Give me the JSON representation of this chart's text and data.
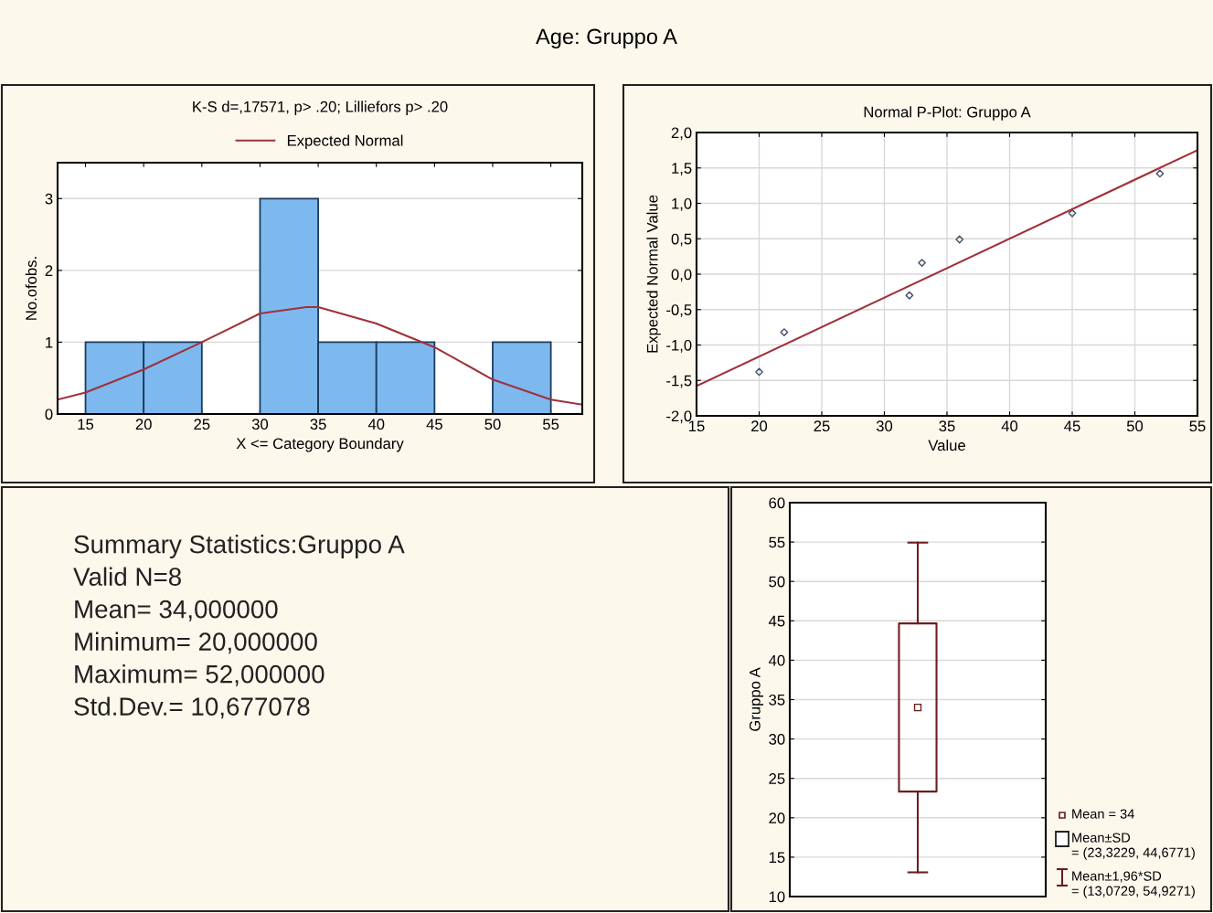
{
  "chart_data": [
    {
      "type": "other",
      "title": "Age: Gruppo A"
    },
    {
      "type": "histogram",
      "title": "K-S d=,17571, p> .20; Lilliefors p> .20",
      "xlabel": "X <= Category Boundary",
      "ylabel": "No.ofobs.",
      "bins": [
        15,
        20,
        25,
        30,
        35,
        40,
        45,
        50,
        55
      ],
      "values": [
        1,
        1,
        0,
        3,
        1,
        1,
        0,
        1
      ],
      "color": "#7db9ef",
      "xlim": [
        12.6,
        57.7
      ],
      "xticks": [
        15,
        20,
        25,
        30,
        35,
        40,
        45,
        50,
        55
      ],
      "ylim": [
        0,
        3.5
      ],
      "yticks": [
        0,
        1,
        2,
        3
      ],
      "grid": "y",
      "legend": "top",
      "series": [
        {
          "type": "line",
          "name": "Expected Normal",
          "color": "#a0303a",
          "x": [
            12.6,
            15,
            20,
            25,
            30,
            34,
            35,
            40,
            45,
            50,
            55,
            57.7
          ],
          "values": [
            0.2,
            0.3,
            0.62,
            1.0,
            1.4,
            1.49,
            1.49,
            1.26,
            0.93,
            0.48,
            0.2,
            0.13
          ]
        }
      ]
    },
    {
      "type": "scatter",
      "title": "Normal P-Plot: Gruppo A",
      "xlabel": "Value",
      "ylabel": "Expected Normal Value",
      "grid": true,
      "xlim": [
        15,
        55
      ],
      "xticks": [
        15,
        20,
        25,
        30,
        35,
        40,
        45,
        50,
        55
      ],
      "ylim": [
        -2,
        2
      ],
      "yticks": [
        {
          "value": -2,
          "label": "-2,0"
        },
        {
          "value": -1.5,
          "label": "-1,5"
        },
        {
          "value": -1,
          "label": "-1,0"
        },
        {
          "value": -0.5,
          "label": "-0,5"
        },
        {
          "value": 0,
          "label": "0,0"
        },
        {
          "value": 0.5,
          "label": "0,5"
        },
        {
          "value": 1,
          "label": "1,0"
        },
        {
          "value": 1.5,
          "label": "1,5"
        },
        {
          "value": 2,
          "label": "2,0"
        }
      ],
      "series": [
        {
          "color": "#3c4c64",
          "marker": "diamond",
          "x": [
            20,
            22,
            32,
            33,
            36,
            45,
            52
          ],
          "values": [
            -1.38,
            -0.82,
            -0.3,
            0.16,
            0.49,
            0.86,
            1.42
          ]
        },
        {
          "type": "line",
          "color": "#a0303a",
          "x": [
            15,
            55
          ],
          "values": [
            -1.58,
            1.75
          ]
        }
      ]
    },
    {
      "type": "other",
      "title": "Summary Statistics:Gruppo A",
      "annotations": [
        "Valid N=8",
        "Mean= 34,000000",
        "Minimum= 20,000000",
        "Maximum= 52,000000",
        "Std.Dev.= 10,677078"
      ]
    },
    {
      "type": "box",
      "ylabel": "Gruppo A",
      "categories": [
        null
      ],
      "color": "#6b1f1f",
      "boxes": [
        {
          "low": 13.0729,
          "q1": 23.3229,
          "median": 34,
          "q3": 44.6771,
          "high": 54.9271
        }
      ],
      "ylim": [
        10,
        60
      ],
      "yticks": [
        10,
        15,
        20,
        25,
        30,
        35,
        40,
        45,
        50,
        55,
        60
      ],
      "grid": "y",
      "annotations": [
        "Mean = 34",
        "Mean±SD\n= (23,3229, 44,6771)",
        "Mean±1,96*SD\n= (13,0729, 54,9271)"
      ]
    }
  ]
}
